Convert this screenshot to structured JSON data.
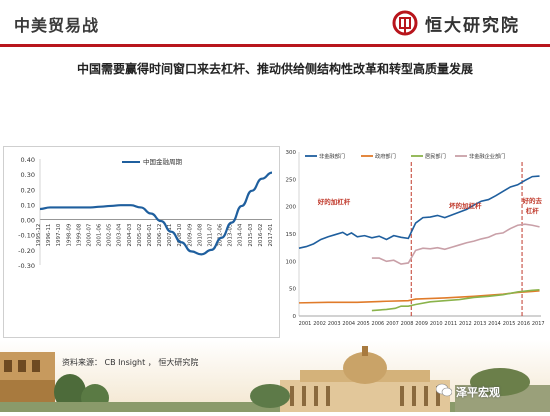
{
  "header": {
    "title": "中美贸易战",
    "brand": "恒大研究院"
  },
  "headline": "中国需要赢得时间窗口来去杠杆、推动供给侧结构性改革和转型高质量发展",
  "source": "资料来源： CB Insight ， 恒大研究院",
  "watermark": "泽平宏观",
  "colors": {
    "accent": "#b8151c",
    "series_blue": "#1f5f9e",
    "series_orange": "#e07b2a",
    "series_green": "#8ab34b",
    "series_pink": "#c9a0a8"
  },
  "chart_data": [
    {
      "type": "line",
      "series": [
        {
          "name": "中国金融周期",
          "x": [
            "1995-12",
            "1996-11",
            "1997-10",
            "1998-09",
            "1999-08",
            "2000-07",
            "2001-06",
            "2002-05",
            "2003-04",
            "2004-03",
            "2005-02",
            "2006-01",
            "2006-12",
            "2007-11",
            "2008-10",
            "2009-09",
            "2010-08",
            "2011-07",
            "2012-06",
            "2013-05",
            "2014-04",
            "2015-03",
            "2016-02",
            "2017-01"
          ],
          "values": [
            0.07,
            0.08,
            0.08,
            0.08,
            0.08,
            0.08,
            0.085,
            0.09,
            0.095,
            0.095,
            0.08,
            0.04,
            -0.01,
            -0.08,
            -0.15,
            -0.21,
            -0.23,
            -0.2,
            -0.12,
            -0.02,
            0.09,
            0.19,
            0.27,
            0.31
          ]
        }
      ],
      "yticks": [
        "0.40",
        "0.30",
        "0.20",
        "0.10",
        "0.00",
        "-0.10",
        "-0.20",
        "-0.30"
      ],
      "ylim": [
        -0.3,
        0.4
      ],
      "xticks": [
        "1995-12",
        "1996-11",
        "1997-10",
        "1998-09",
        "1999-08",
        "2000-07",
        "2001-06",
        "2002-05",
        "2003-04",
        "2004-03",
        "2005-02",
        "2006-01",
        "2006-12",
        "2007-11",
        "2008-10",
        "2009-09",
        "2010-08",
        "2011-07",
        "2012-06",
        "2013-05",
        "2014-04",
        "2015-03",
        "2016-02",
        "2017-01"
      ]
    },
    {
      "type": "line",
      "x": [
        "2001",
        "2002",
        "2003",
        "2004",
        "2005",
        "2006",
        "2007",
        "2008",
        "2009",
        "2010",
        "2011",
        "2012",
        "2013",
        "2014",
        "2015",
        "2016",
        "2017"
      ],
      "ylim": [
        0,
        300
      ],
      "yticks": [
        "300",
        "250",
        "200",
        "150",
        "100",
        "50",
        "0"
      ],
      "legend_position": "top",
      "series": [
        {
          "name": "非金融部门",
          "color": "#1f5f9e",
          "points": [
            [
              2001.0,
              124
            ],
            [
              2001.5,
              127
            ],
            [
              2002.0,
              132
            ],
            [
              2002.5,
              140
            ],
            [
              2003.0,
              145
            ],
            [
              2003.5,
              149
            ],
            [
              2004.0,
              153
            ],
            [
              2004.3,
              148
            ],
            [
              2004.6,
              152
            ],
            [
              2005.0,
              145
            ],
            [
              2005.5,
              147
            ],
            [
              2006.0,
              143
            ],
            [
              2006.5,
              146
            ],
            [
              2007.0,
              140
            ],
            [
              2007.5,
              147
            ],
            [
              2008.0,
              144
            ],
            [
              2008.5,
              142
            ],
            [
              2009.0,
              170
            ],
            [
              2009.5,
              180
            ],
            [
              2010.0,
              181
            ],
            [
              2010.5,
              184
            ],
            [
              2011.0,
              180
            ],
            [
              2011.5,
              185
            ],
            [
              2012.0,
              190
            ],
            [
              2012.5,
              195
            ],
            [
              2013.0,
              203
            ],
            [
              2013.5,
              210
            ],
            [
              2014.0,
              213
            ],
            [
              2014.5,
              220
            ],
            [
              2015.0,
              228
            ],
            [
              2015.5,
              236
            ],
            [
              2016.0,
              240
            ],
            [
              2016.5,
              248
            ],
            [
              2017.0,
              255
            ],
            [
              2017.5,
              256
            ]
          ]
        },
        {
          "name": "政府部门",
          "color": "#e07b2a",
          "points": [
            [
              2001.0,
              24
            ],
            [
              2003.0,
              25
            ],
            [
              2005.0,
              25
            ],
            [
              2007.0,
              27
            ],
            [
              2008.5,
              28
            ],
            [
              2009.0,
              31
            ],
            [
              2011.0,
              33
            ],
            [
              2013.0,
              36
            ],
            [
              2015.0,
              40
            ],
            [
              2016.0,
              43
            ],
            [
              2017.0,
              45
            ],
            [
              2017.5,
              46
            ]
          ]
        },
        {
          "name": "居民部门",
          "color": "#8ab34b",
          "points": [
            [
              2006.0,
              10
            ],
            [
              2007.0,
              12
            ],
            [
              2007.6,
              14
            ],
            [
              2008.0,
              18
            ],
            [
              2008.5,
              18
            ],
            [
              2009.0,
              21
            ],
            [
              2010.0,
              26
            ],
            [
              2011.0,
              28
            ],
            [
              2012.0,
              30
            ],
            [
              2013.0,
              34
            ],
            [
              2014.0,
              36
            ],
            [
              2015.0,
              39
            ],
            [
              2016.0,
              44
            ],
            [
              2017.0,
              47
            ],
            [
              2017.5,
              48
            ]
          ]
        },
        {
          "name": "非金融企业部门",
          "color": "#c9a0a8",
          "points": [
            [
              2006.0,
              106
            ],
            [
              2006.5,
              106
            ],
            [
              2007.0,
              100
            ],
            [
              2007.5,
              102
            ],
            [
              2008.0,
              95
            ],
            [
              2008.5,
              97
            ],
            [
              2009.0,
              120
            ],
            [
              2009.5,
              124
            ],
            [
              2010.0,
              123
            ],
            [
              2010.5,
              125
            ],
            [
              2011.0,
              122
            ],
            [
              2011.5,
              126
            ],
            [
              2012.0,
              130
            ],
            [
              2012.5,
              134
            ],
            [
              2013.0,
              137
            ],
            [
              2013.5,
              141
            ],
            [
              2014.0,
              144
            ],
            [
              2014.5,
              150
            ],
            [
              2015.0,
              152
            ],
            [
              2015.5,
              160
            ],
            [
              2016.0,
              166
            ],
            [
              2016.5,
              168
            ],
            [
              2017.0,
              166
            ],
            [
              2017.5,
              163
            ]
          ]
        }
      ],
      "markers": [
        {
          "x": 2008.7
        },
        {
          "x": 2016.3
        }
      ],
      "annotations": [
        {
          "text": "好的加杠杆",
          "x": 2003.4,
          "y": 205
        },
        {
          "text": "坏的加杠杆",
          "x": 2012.4,
          "y": 198
        },
        {
          "text": "好的去",
          "x": 2017.0,
          "y": 207
        },
        {
          "text": "杠杆",
          "x": 2017.0,
          "y": 188
        }
      ]
    }
  ]
}
